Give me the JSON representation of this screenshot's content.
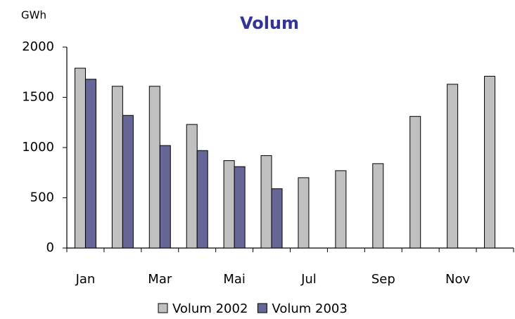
{
  "chart_data": {
    "type": "bar",
    "title": "Volum",
    "y_label": "GWh",
    "categories": [
      "Jan",
      null,
      "Mar",
      null,
      "Mai",
      null,
      "Jul",
      null,
      "Sep",
      null,
      "Nov",
      null
    ],
    "series": [
      {
        "name": "Volum 2002",
        "color": "#c0c0c0",
        "values": [
          1790,
          1610,
          1610,
          1230,
          870,
          920,
          700,
          770,
          840,
          1310,
          1630,
          1710
        ]
      },
      {
        "name": "Volum 2003",
        "color": "#666699",
        "values": [
          1680,
          1320,
          1020,
          970,
          810,
          590,
          null,
          null,
          null,
          null,
          null,
          null
        ]
      }
    ],
    "ylim": [
      0,
      2000
    ],
    "yticks": [
      0,
      500,
      1000,
      1500,
      2000
    ],
    "grid": false,
    "legend": "bottom"
  }
}
